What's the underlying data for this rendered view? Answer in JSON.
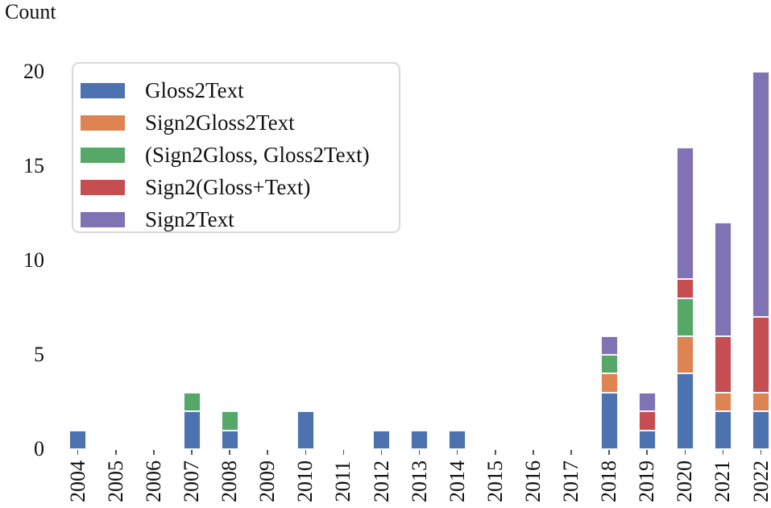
{
  "chart_data": {
    "type": "bar",
    "stacked": true,
    "ylabel": "Count",
    "ylim": [
      0,
      20
    ],
    "yticks": [
      0,
      5,
      10,
      15,
      20
    ],
    "grid": false,
    "legend_position": "upper left",
    "categories": [
      "2004",
      "2005",
      "2006",
      "2007",
      "2008",
      "2009",
      "2010",
      "2011",
      "2012",
      "2013",
      "2014",
      "2015",
      "2016",
      "2017",
      "2018",
      "2019",
      "2020",
      "2021",
      "2022"
    ],
    "series": [
      {
        "name": "Gloss2Text",
        "color": "#4C72B0",
        "values": [
          1,
          0,
          0,
          2,
          1,
          0,
          2,
          0,
          1,
          1,
          1,
          0,
          0,
          0,
          3,
          1,
          4,
          2,
          2
        ]
      },
      {
        "name": "Sign2Gloss2Text",
        "color": "#DD8452",
        "values": [
          0,
          0,
          0,
          0,
          0,
          0,
          0,
          0,
          0,
          0,
          0,
          0,
          0,
          0,
          1,
          0,
          2,
          1,
          1
        ]
      },
      {
        "name": "(Sign2Gloss, Gloss2Text)",
        "color": "#55A868",
        "values": [
          0,
          0,
          0,
          1,
          1,
          0,
          0,
          0,
          0,
          0,
          0,
          0,
          0,
          0,
          1,
          0,
          2,
          0,
          0
        ]
      },
      {
        "name": "Sign2(Gloss+Text)",
        "color": "#C44E52",
        "values": [
          0,
          0,
          0,
          0,
          0,
          0,
          0,
          0,
          0,
          0,
          0,
          0,
          0,
          0,
          0,
          1,
          1,
          3,
          4
        ]
      },
      {
        "name": "Sign2Text",
        "color": "#8172B3",
        "values": [
          0,
          0,
          0,
          0,
          0,
          0,
          0,
          0,
          0,
          0,
          0,
          0,
          0,
          0,
          1,
          1,
          7,
          6,
          13
        ]
      }
    ]
  }
}
